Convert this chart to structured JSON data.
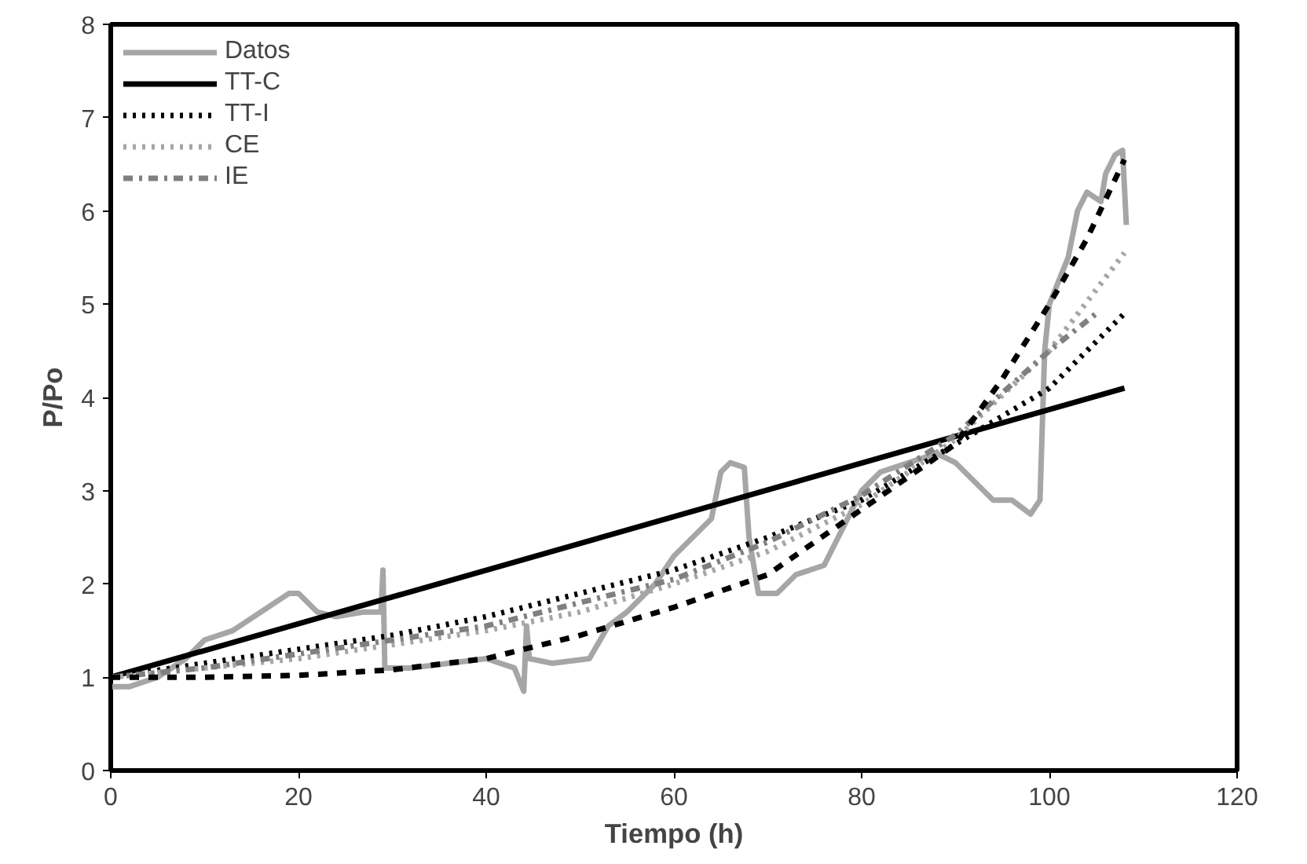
{
  "chart_data": {
    "type": "line",
    "xlabel": "Tiempo (h)",
    "ylabel": "P/Po",
    "xlim": [
      0,
      120
    ],
    "xticks": [
      0,
      20,
      40,
      60,
      80,
      100,
      120
    ],
    "ylim": [
      0,
      8
    ],
    "yticks": [
      0,
      1,
      2,
      3,
      4,
      5,
      6,
      7,
      8
    ],
    "grid": false,
    "legend": "top left",
    "series": [
      {
        "name": "Datos",
        "color": "#a6a6a6",
        "line_style": "solid",
        "x": [
          0,
          2,
          5,
          8,
          10,
          13,
          16,
          19,
          20,
          22,
          24,
          27,
          28.8,
          29,
          29.2,
          32,
          36,
          40,
          43,
          44,
          44.3,
          44.6,
          47,
          51,
          53,
          55,
          58,
          60,
          62,
          64,
          65,
          66,
          67.5,
          68,
          69,
          71,
          73,
          76,
          78,
          80,
          82,
          85,
          88,
          90,
          92,
          94,
          96,
          98,
          99,
          99.5,
          100,
          102,
          103,
          104,
          105.5,
          106,
          107,
          107.8,
          108.2
        ],
        "values": [
          0.9,
          0.9,
          1.0,
          1.2,
          1.4,
          1.5,
          1.7,
          1.9,
          1.9,
          1.7,
          1.65,
          1.7,
          1.7,
          2.15,
          1.1,
          1.1,
          1.15,
          1.2,
          1.1,
          0.85,
          1.55,
          1.2,
          1.15,
          1.2,
          1.55,
          1.7,
          2.0,
          2.3,
          2.5,
          2.7,
          3.2,
          3.3,
          3.25,
          2.5,
          1.9,
          1.9,
          2.1,
          2.2,
          2.6,
          3.0,
          3.2,
          3.3,
          3.4,
          3.3,
          3.1,
          2.9,
          2.9,
          2.75,
          2.9,
          4.5,
          5.0,
          5.5,
          6.0,
          6.2,
          6.1,
          6.4,
          6.6,
          6.65,
          5.85
        ]
      },
      {
        "name": "TT-C",
        "color": "#000000",
        "line_style": "solid",
        "x": [
          0,
          108
        ],
        "values": [
          1.0,
          4.1
        ]
      },
      {
        "name": "TT-I",
        "color": "#000000",
        "line_style": "dotted",
        "x": [
          0,
          10,
          20,
          30,
          40,
          50,
          60,
          70,
          80,
          90,
          100,
          108
        ],
        "values": [
          1.0,
          1.15,
          1.3,
          1.45,
          1.65,
          1.9,
          2.15,
          2.5,
          2.9,
          3.5,
          4.1,
          4.9
        ]
      },
      {
        "name": "CE",
        "color": "#a6a6a6",
        "line_style": "dotted",
        "x": [
          0,
          10,
          20,
          30,
          40,
          50,
          60,
          70,
          80,
          90,
          100,
          108
        ],
        "values": [
          1.0,
          1.1,
          1.2,
          1.35,
          1.5,
          1.7,
          2.0,
          2.35,
          2.85,
          3.55,
          4.5,
          5.55
        ]
      },
      {
        "name": "IE",
        "color": "#808080",
        "line_style": "dashdot",
        "x": [
          0,
          10,
          20,
          30,
          40,
          50,
          60,
          70,
          80,
          90,
          100,
          105
        ],
        "values": [
          1.0,
          1.1,
          1.25,
          1.4,
          1.55,
          1.8,
          2.05,
          2.45,
          2.95,
          3.6,
          4.5,
          4.9
        ]
      },
      {
        "color": "#000000",
        "line_style": "dashed",
        "x": [
          0,
          10,
          20,
          30,
          40,
          50,
          60,
          70,
          80,
          90,
          95,
          100,
          104,
          108
        ],
        "values": [
          1.0,
          1.0,
          1.02,
          1.08,
          1.2,
          1.45,
          1.75,
          2.1,
          2.8,
          3.5,
          4.2,
          5.0,
          5.7,
          6.55
        ]
      }
    ]
  }
}
